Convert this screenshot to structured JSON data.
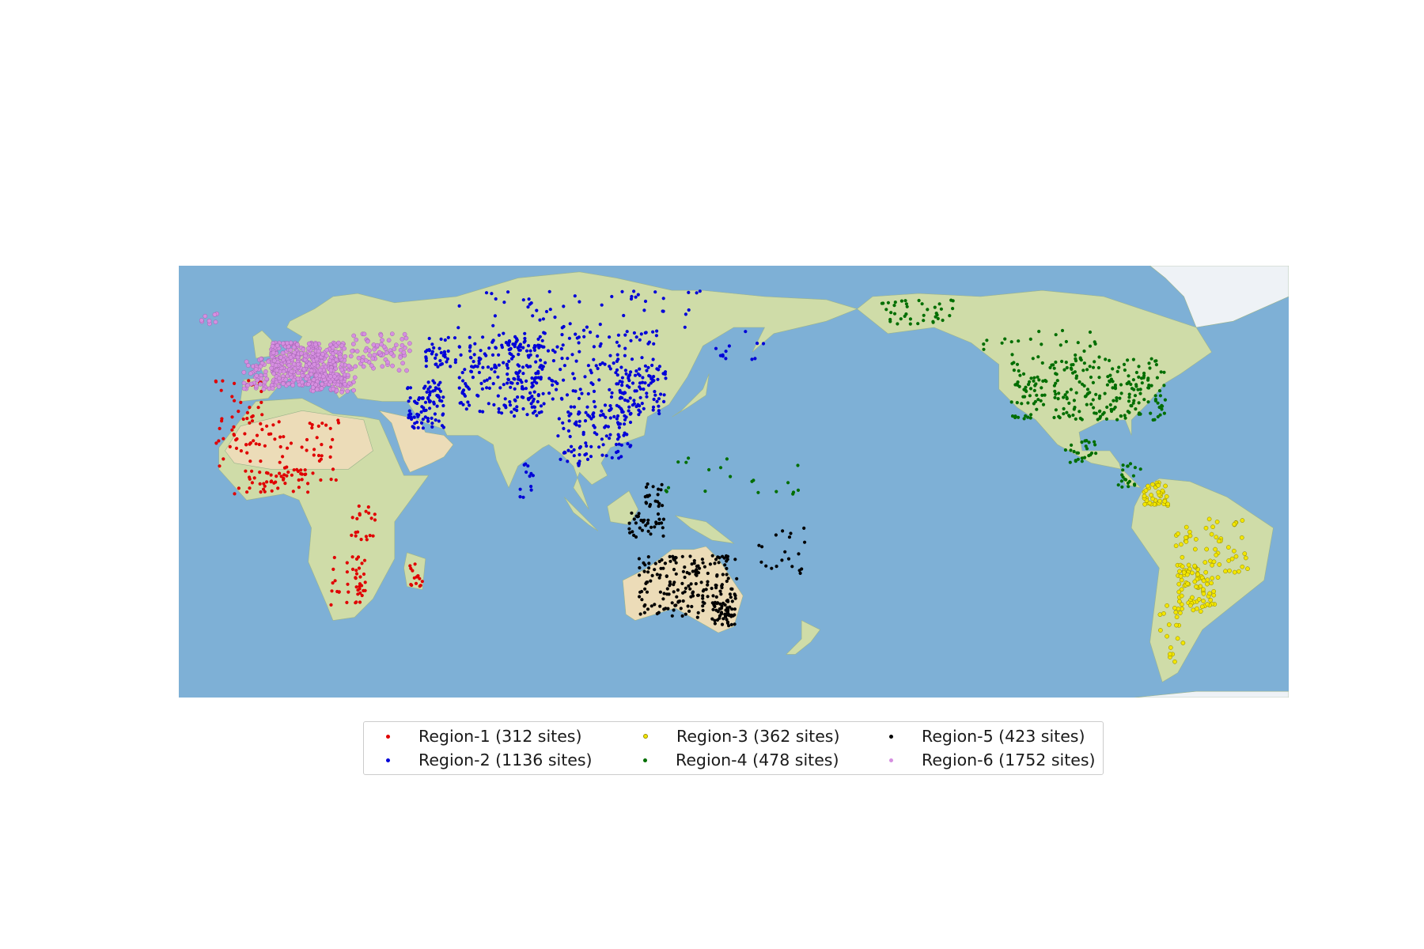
{
  "legend": {
    "entries": [
      {
        "label": "Region-1 (312 sites)",
        "color": "#e00000"
      },
      {
        "label": "Region-2 (1136 sites)",
        "color": "#0000d8"
      },
      {
        "label": "Region-3 (362 sites)",
        "color": "#f2e600"
      },
      {
        "label": "Region-4 (478 sites)",
        "color": "#006e00"
      },
      {
        "label": "Region-5 (423 sites)",
        "color": "#000000"
      },
      {
        "label": "Region-6 (1752 sites)",
        "color": "#d68fe0"
      }
    ]
  },
  "colors": {
    "ocean": "#7eb0d6",
    "land": "#cfdca8",
    "desert": "#ecdcb8",
    "ice": "#eef2f6"
  },
  "map": {
    "projection": "equirectangular",
    "central_longitude": 150,
    "lon_range": [
      -30,
      330
    ],
    "lat_range": [
      -60,
      80
    ]
  }
}
